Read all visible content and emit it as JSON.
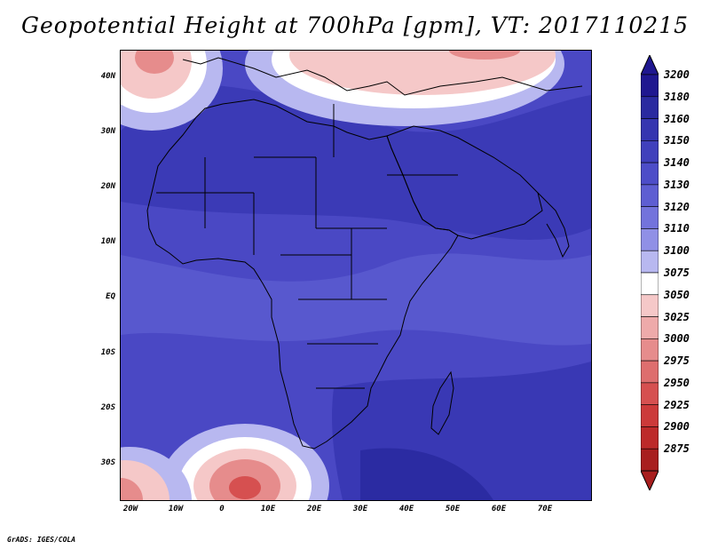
{
  "title": "Geopotential Height at 700hPa [gpm], VT: 2017110215",
  "footer": "GrADS: IGES/COLA",
  "axes": {
    "lat_labels": [
      "40N",
      "30N",
      "20N",
      "10N",
      "EQ",
      "10S",
      "20S",
      "30S"
    ],
    "lon_labels": [
      "20W",
      "10W",
      "0",
      "10E",
      "20E",
      "30E",
      "40E",
      "50E",
      "60E",
      "70E"
    ]
  },
  "colorbar": {
    "labels": [
      "3200",
      "3180",
      "3160",
      "3150",
      "3140",
      "3130",
      "3120",
      "3110",
      "3100",
      "3075",
      "3050",
      "3025",
      "3000",
      "2975",
      "2950",
      "2925",
      "2900",
      "2875"
    ],
    "colors": [
      "#1f1790",
      "#2a2aa0",
      "#3535b0",
      "#4040bc",
      "#4d4dc8",
      "#5e5ed2",
      "#7373dc",
      "#9090e6",
      "#b8b8f0",
      "#ffffff",
      "#f5c8c8",
      "#eeaaaa",
      "#e68c8c",
      "#de6e6e",
      "#d65050",
      "#cc3a3a",
      "#bd2a2a",
      "#a81e1e"
    ],
    "arrow_top_color": "#1f1790",
    "arrow_bottom_color": "#a81e1e"
  },
  "field_colors": {
    "base": "#4a48c4",
    "deep": "#3535b0",
    "mid": "#5e5ed2",
    "light": "#7373dc",
    "pale": "#b8b8f0",
    "white": "#ffffff",
    "pink": "#f5c8c8",
    "red1": "#e68c8c",
    "red2": "#d65050",
    "coast": "#000000"
  }
}
